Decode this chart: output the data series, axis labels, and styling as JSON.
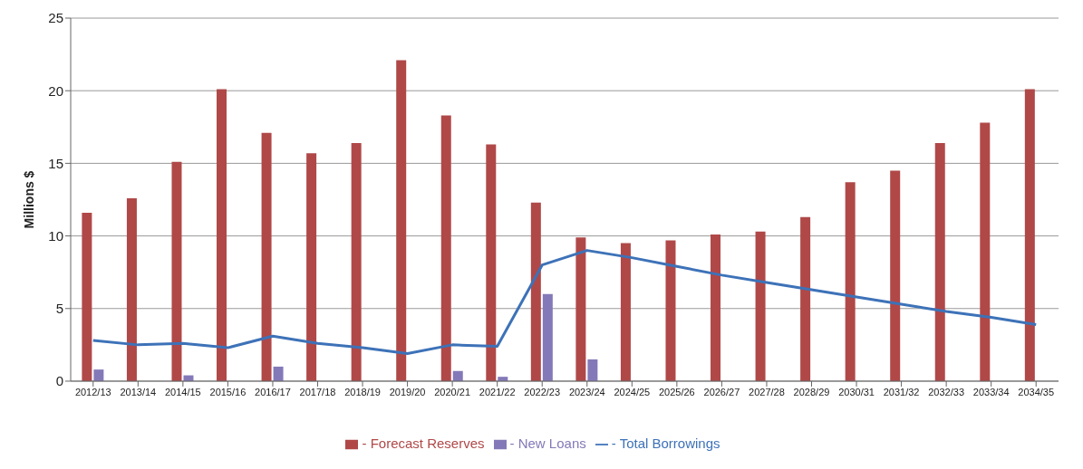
{
  "chart_data": {
    "type": "bar",
    "ylabel": "Millions $",
    "categories": [
      "2012/13",
      "2013/14",
      "2014/15",
      "2015/16",
      "2016/17",
      "2017/18",
      "2018/19",
      "2019/20",
      "2020/21",
      "2021/22",
      "2022/23",
      "2023/24",
      "2024/25",
      "2025/26",
      "2026/27",
      "2027/28",
      "2028/29",
      "2030/31",
      "2031/32",
      "2032/33",
      "2033/34",
      "2034/35"
    ],
    "series": [
      {
        "name": "- Forecast Reserves",
        "color": "#b04848",
        "values": [
          11.6,
          12.6,
          15.1,
          20.1,
          17.1,
          15.7,
          16.4,
          22.1,
          18.3,
          16.3,
          12.3,
          9.9,
          9.5,
          9.7,
          10.1,
          10.3,
          11.3,
          13.7,
          14.5,
          16.4,
          17.8,
          20.1
        ]
      },
      {
        "name": "- New Loans",
        "color": "#8479b8",
        "values": [
          0.8,
          0,
          0.4,
          0,
          1.0,
          0,
          0,
          0,
          0.7,
          0.3,
          6.0,
          1.5,
          0,
          0,
          0,
          0,
          0,
          0,
          0,
          0,
          0,
          0
        ]
      },
      {
        "name": "- Total Borrowings",
        "type": "line",
        "color": "#3d72b8",
        "values": [
          2.8,
          2.5,
          2.6,
          2.3,
          3.1,
          2.6,
          2.3,
          1.9,
          2.5,
          2.4,
          8.0,
          9.0,
          8.5,
          7.9,
          7.3,
          6.8,
          6.3,
          5.8,
          5.3,
          4.8,
          4.4,
          3.9
        ]
      }
    ],
    "ylim": [
      0,
      25
    ],
    "yticks": [
      0,
      5,
      10,
      15,
      20,
      25
    ],
    "grid": "y",
    "legend": "bottom",
    "marker": "none",
    "line_style": "solid"
  }
}
